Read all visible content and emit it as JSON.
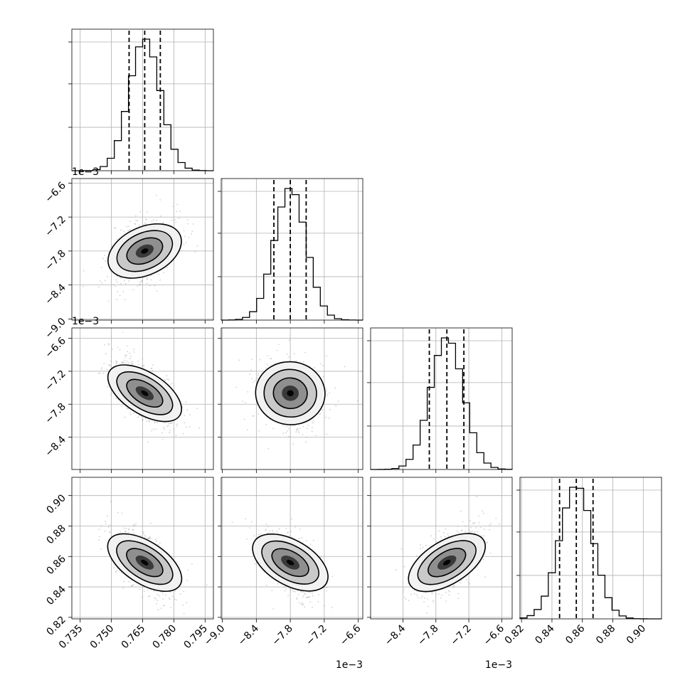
{
  "chart_data": {
    "type": "corner",
    "grid": true,
    "quantile_lines": "dashed",
    "contour_levels": 3,
    "parameters": [
      {
        "range": [
          0.731,
          0.799
        ],
        "ticks": [
          "0.735",
          "0.750",
          "0.765",
          "0.780",
          "0.795"
        ],
        "tick_values": [
          0.735,
          0.75,
          0.765,
          0.78,
          0.795
        ],
        "offset": "",
        "mean": 0.766,
        "sd": 0.0075,
        "quantiles": [
          0.7585,
          0.766,
          0.7735
        ]
      },
      {
        "range": [
          -9.02,
          -6.52
        ],
        "ticks": [
          "−9.0",
          "−8.4",
          "−7.8",
          "−7.2",
          "−6.6"
        ],
        "tick_values": [
          -9.0,
          -8.4,
          -7.8,
          -7.2,
          -6.6
        ],
        "offset": "1e−3",
        "mean": -7.8,
        "sd": 0.28,
        "quantiles": [
          -8.09,
          -7.8,
          -7.52
        ]
      },
      {
        "range": [
          -8.99,
          -6.41
        ],
        "ticks": [
          "−8.4",
          "−7.8",
          "−7.2",
          "−6.6"
        ],
        "tick_values": [
          -8.4,
          -7.8,
          -7.2,
          -6.6
        ],
        "offset": "1e−3",
        "mean": -7.6,
        "sd": 0.3,
        "quantiles": [
          -7.92,
          -7.6,
          -7.29
        ]
      },
      {
        "range": [
          0.819,
          0.912
        ],
        "ticks": [
          "0.82",
          "0.84",
          "0.86",
          "0.88",
          "0.90"
        ],
        "tick_values": [
          0.82,
          0.84,
          0.86,
          0.88,
          0.9
        ],
        "offset": "",
        "mean": 0.856,
        "sd": 0.011,
        "quantiles": [
          0.845,
          0.856,
          0.867
        ]
      }
    ],
    "correlations": [
      {
        "row": 1,
        "col": 0,
        "rho": 0.45
      },
      {
        "row": 2,
        "col": 0,
        "rho": -0.6
      },
      {
        "row": 2,
        "col": 1,
        "rho": -0.1
      },
      {
        "row": 3,
        "col": 0,
        "rho": -0.6
      },
      {
        "row": 3,
        "col": 1,
        "rho": -0.55
      },
      {
        "row": 3,
        "col": 2,
        "rho": 0.6
      }
    ]
  }
}
